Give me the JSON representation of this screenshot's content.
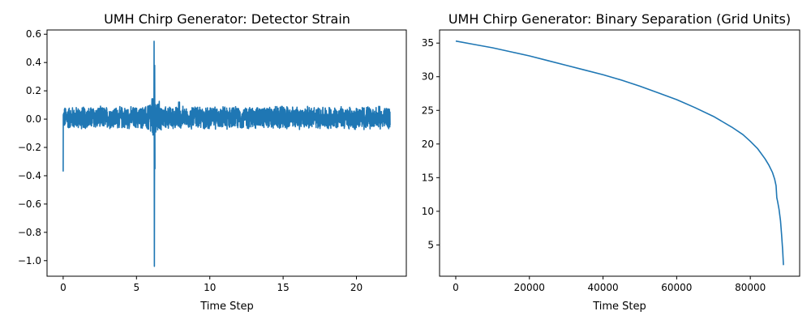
{
  "chart_data": [
    {
      "type": "line",
      "title": "UMH Chirp Generator: Detector Strain",
      "xlabel": "Time Step",
      "ylabel": "",
      "xlim": [
        -1.1,
        23.4
      ],
      "ylim": [
        -1.11,
        0.63
      ],
      "xticks": [
        0,
        5,
        10,
        15,
        20
      ],
      "yticks": [
        0.6,
        0.4,
        0.2,
        0.0,
        -0.2,
        -0.4,
        -0.6,
        -0.8,
        -1.0
      ],
      "ytick_labels": [
        "0.6",
        "0.4",
        "0.2",
        "0.0",
        "−0.2",
        "−0.4",
        "−0.6",
        "−0.8",
        "−1.0"
      ],
      "grid": false,
      "series": [
        {
          "color": "#1f77b4",
          "x_range": [
            0,
            22.3
          ],
          "start_value": -0.37,
          "noise_band": [
            -0.1,
            0.1
          ],
          "burst": {
            "x": 6.2,
            "max": 0.55,
            "min": -1.04
          }
        }
      ]
    },
    {
      "type": "line",
      "title": "UMH Chirp Generator: Binary Separation (Grid Units)",
      "xlabel": "Time Step",
      "ylabel": "",
      "xlim": [
        -4400,
        93400
      ],
      "ylim": [
        0.35,
        36.95
      ],
      "xticks": [
        0,
        20000,
        40000,
        60000,
        80000
      ],
      "yticks": [
        35,
        30,
        25,
        20,
        15,
        10,
        5
      ],
      "grid": false,
      "series": [
        {
          "color": "#1f77b4",
          "x": [
            0,
            5000,
            10000,
            15000,
            20000,
            25000,
            30000,
            35000,
            40000,
            45000,
            50000,
            55000,
            60000,
            65000,
            70000,
            75000,
            78000,
            80000,
            82000,
            84000,
            85000,
            86000,
            86600,
            87000,
            87200,
            87400,
            87800,
            88200,
            88500,
            88800,
            89000
          ],
          "y": [
            35.3,
            34.8,
            34.3,
            33.7,
            33.1,
            32.4,
            31.7,
            31.0,
            30.3,
            29.5,
            28.6,
            27.6,
            26.6,
            25.4,
            24.1,
            22.5,
            21.4,
            20.4,
            19.3,
            17.8,
            16.9,
            15.8,
            14.8,
            13.8,
            12.0,
            11.5,
            10.3,
            8.6,
            6.5,
            4.1,
            2.0
          ]
        }
      ]
    }
  ]
}
